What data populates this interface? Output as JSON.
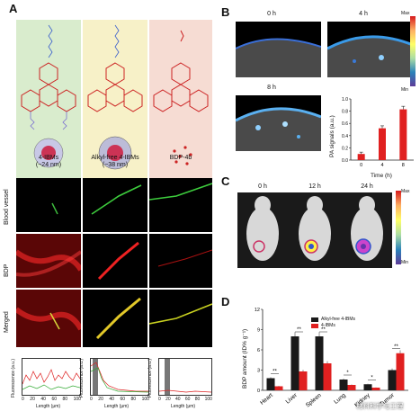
{
  "panels": {
    "a": "A",
    "b": "B",
    "c": "C",
    "d": "D"
  },
  "panel_a": {
    "columns": [
      {
        "name": "4-IBMs",
        "size": "(~24 nm)",
        "bg": "#d9eccd"
      },
      {
        "name": "Alkyl-free 4-IBMs",
        "size": "(~38 nm)",
        "bg": "#f7f1c8"
      },
      {
        "name": "BDP-4b",
        "size": "",
        "bg": "#f6dcd3"
      }
    ],
    "row_labels": [
      "Blood vessel",
      "BDP",
      "Merged"
    ],
    "plot_ylabel": "Fluorescence (a.u.)",
    "plot_xlabel": "Length (μm)",
    "plot_xticks": [
      "0",
      "20",
      "40",
      "60",
      "80",
      "100"
    ],
    "plot_yticks": [
      "0",
      "10",
      "20",
      "30",
      "40"
    ]
  },
  "panel_b": {
    "frames": [
      "0 h",
      "4 h",
      "8 h"
    ],
    "colorbar_max": "Max",
    "colorbar_min": "Min",
    "chart_ylabel": "PA signals (a.u.)",
    "chart_xlabel": "Time (h)"
  },
  "panel_c": {
    "frames": [
      "0 h",
      "12 h",
      "24 h"
    ],
    "colorbar_max": "Max",
    "colorbar_min": "Min"
  },
  "panel_d": {
    "legend": [
      "Alkyl-free 4-IBMs",
      "4-IBMs"
    ],
    "sig_marks": [
      "**",
      "**",
      "**",
      "*",
      "*",
      "**"
    ],
    "watermark": "材料科学与工程"
  },
  "chart_data": [
    {
      "type": "bar",
      "categories": [
        "0",
        "4",
        "8"
      ],
      "values": [
        0.1,
        0.52,
        0.83
      ],
      "errors": [
        0.03,
        0.04,
        0.05
      ],
      "xlabel": "Time (h)",
      "ylabel": "PA signals (a.u.)",
      "ylim": [
        0,
        1.0
      ],
      "yticks": [
        "0.0",
        "0.2",
        "0.4",
        "0.6",
        "0.8",
        "1.0"
      ],
      "color": "#e02020"
    },
    {
      "type": "bar",
      "categories": [
        "Heart",
        "Liver",
        "Spleen",
        "Lung",
        "Kidney",
        "Tumor"
      ],
      "series": [
        {
          "name": "Alkyl-free 4-IBMs",
          "values": [
            1.8,
            8.0,
            8.0,
            1.6,
            0.9,
            3.0
          ],
          "color": "#1a1a1a"
        },
        {
          "name": "4-IBMs",
          "values": [
            0.6,
            2.8,
            4.0,
            0.8,
            0.4,
            5.5
          ],
          "color": "#e02020"
        }
      ],
      "ylabel": "BDP amount (ID% g⁻¹)",
      "ylim": [
        0,
        12
      ],
      "yticks": [
        "0",
        "3",
        "6",
        "9",
        "12"
      ],
      "grid": false,
      "legend": "top-right"
    }
  ]
}
